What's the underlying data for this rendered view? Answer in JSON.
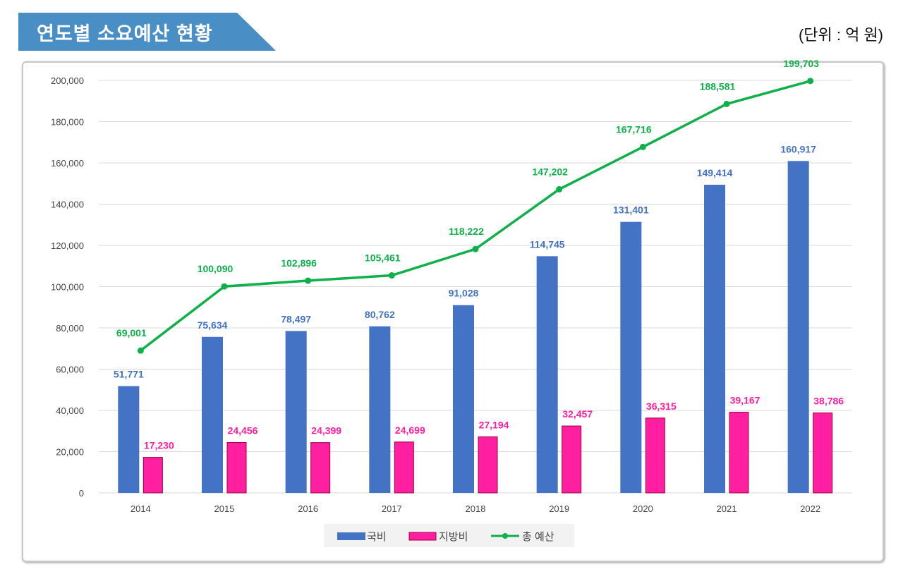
{
  "header": {
    "title": "연도별 소요예산 현황",
    "unit": "(단위 : 억 원)"
  },
  "chart_data": {
    "type": "bar",
    "categories": [
      "2014",
      "2015",
      "2016",
      "2017",
      "2018",
      "2019",
      "2020",
      "2021",
      "2022"
    ],
    "series": [
      {
        "name": "국비",
        "type": "bar",
        "color": "#4472c4",
        "values": [
          51771,
          75634,
          78497,
          80762,
          91028,
          114745,
          131401,
          149414,
          160917
        ]
      },
      {
        "name": "지방비",
        "type": "bar",
        "color": "#ff1fa0",
        "values": [
          17230,
          24456,
          24399,
          24699,
          27194,
          32457,
          36315,
          39167,
          38786
        ]
      },
      {
        "name": "총 예산",
        "type": "line",
        "color": "#0fb04a",
        "values": [
          69001,
          100090,
          102896,
          105461,
          118222,
          147202,
          167716,
          188581,
          199703
        ]
      }
    ],
    "yticks": [
      "0",
      "20,000",
      "40,000",
      "60,000",
      "80,000",
      "100,000",
      "120,000",
      "140,000",
      "160,000",
      "180,000",
      "200,000"
    ],
    "ylim": [
      0,
      200000
    ],
    "grid": true,
    "legend": "bottom",
    "data_labels": {
      "국비": [
        "51,771",
        "75,634",
        "78,497",
        "80,762",
        "91,028",
        "114,745",
        "131,401",
        "149,414",
        "160,917"
      ],
      "지방비": [
        "17,230",
        "24,456",
        "24,399",
        "24,699",
        "27,194",
        "32,457",
        "36,315",
        "39,167",
        "38,786"
      ],
      "총 예산": [
        "69,001",
        "100,090",
        "102,896",
        "105,461",
        "118,222",
        "147,202",
        "167,716",
        "188,581",
        "199,703"
      ]
    }
  }
}
